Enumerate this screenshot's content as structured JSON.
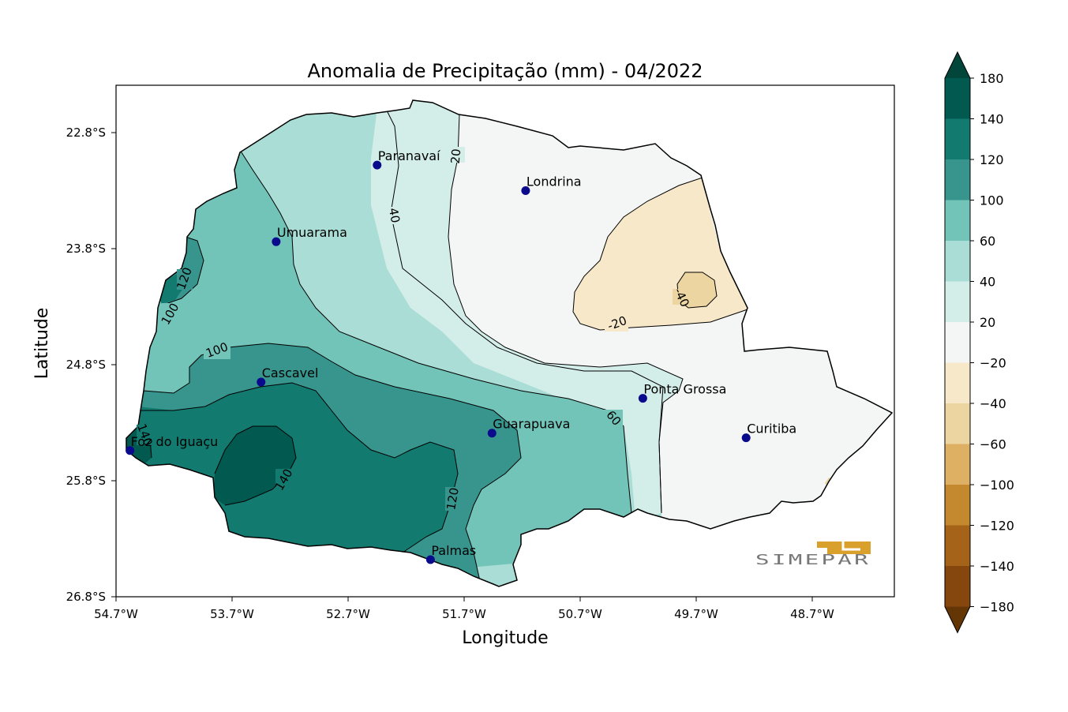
{
  "title": "Anomalia de Precipitação (mm) - 04/2022",
  "xlabel": "Longitude",
  "ylabel": "Latitude",
  "x_ticks": [
    "54.7°W",
    "53.7°W",
    "52.7°W",
    "51.7°W",
    "50.7°W",
    "49.7°W",
    "48.7°W"
  ],
  "y_ticks": [
    "22.8°S",
    "23.8°S",
    "24.8°S",
    "25.8°S",
    "26.8°S"
  ],
  "cities": [
    {
      "name": "Paranavaí",
      "lon": -52.45,
      "lat": -23.08
    },
    {
      "name": "Londrina",
      "lon": -51.17,
      "lat": -23.3
    },
    {
      "name": "Umuarama",
      "lon": -53.32,
      "lat": -23.74
    },
    {
      "name": "Cascavel",
      "lon": -53.45,
      "lat": -24.95
    },
    {
      "name": "Ponta Grossa",
      "lon": -50.16,
      "lat": -25.09
    },
    {
      "name": "Guarapuava",
      "lon": -51.46,
      "lat": -25.39
    },
    {
      "name": "Curitiba",
      "lon": -49.27,
      "lat": -25.43
    },
    {
      "name": "Foz do Iguaçu",
      "lon": -54.58,
      "lat": -25.54
    },
    {
      "name": "Palmas",
      "lon": -51.99,
      "lat": -26.48
    }
  ],
  "contour_labels": [
    "20",
    "40",
    "40",
    "-20",
    "-40",
    "120",
    "100",
    "100",
    "60",
    "140",
    "140",
    "120"
  ],
  "colorbar": {
    "ticks": [
      "180",
      "140",
      "120",
      "100",
      "60",
      "40",
      "20",
      "−20",
      "−40",
      "−60",
      "−100",
      "−120",
      "−140",
      "−180"
    ],
    "colors_top_to_bottom": [
      "#01453b",
      "#02594f",
      "#137a70",
      "#37958d",
      "#72c3b8",
      "#a9ddd6",
      "#d3eee9",
      "#f4f5f5",
      "#f6e8c8",
      "#ecd5a0",
      "#deb063",
      "#c4882f",
      "#a46318",
      "#86470e",
      "#643505"
    ]
  },
  "chart_data": {
    "type": "heatmap",
    "title": "Anomalia de Precipitação (mm) - 04/2022",
    "xlabel": "Longitude",
    "ylabel": "Latitude",
    "xlim": [
      -54.7,
      -48.0
    ],
    "ylim": [
      -26.8,
      -22.4
    ],
    "levels": [
      -180,
      -140,
      -120,
      -100,
      -60,
      -40,
      -20,
      20,
      40,
      60,
      100,
      120,
      140,
      180
    ],
    "legend": "colorbar-right"
  },
  "logo_text": "SIMEPAR"
}
